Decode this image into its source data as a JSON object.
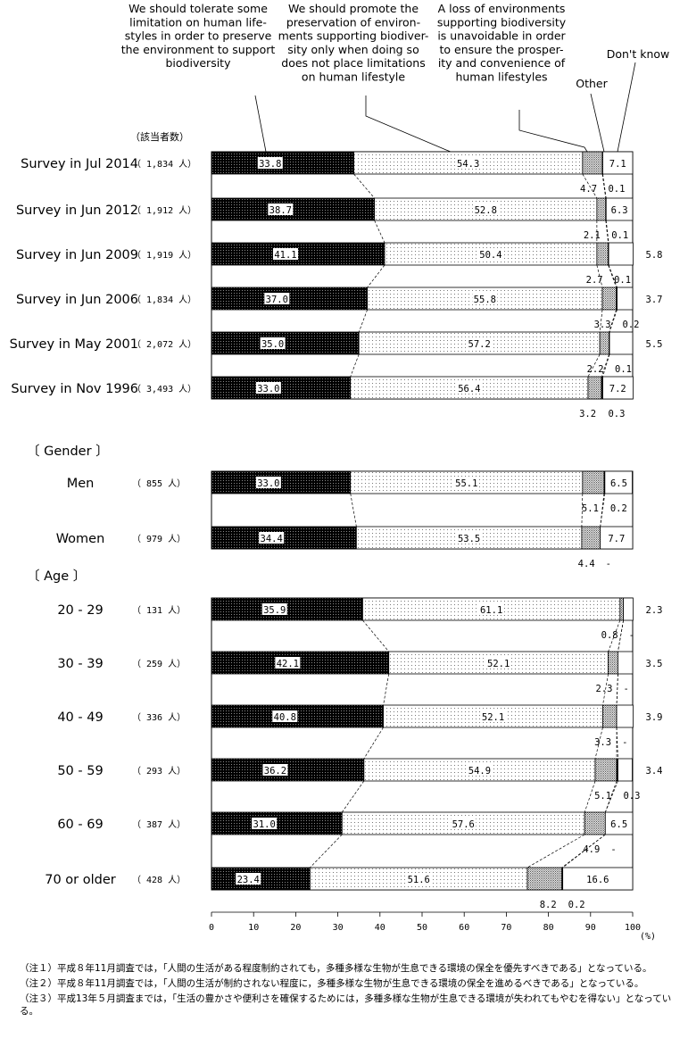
{
  "chart_data": {
    "type": "bar",
    "orientation": "horizontal-stacked-100",
    "count_header": "（該当者数）",
    "unit_suffix": "人",
    "xaxis": {
      "ticks": [
        0,
        10,
        20,
        30,
        40,
        50,
        60,
        70,
        80,
        90,
        100
      ],
      "unit": "(%)",
      "range": [
        0,
        100
      ]
    },
    "categories": [
      {
        "label": "Survey in Jul 2014",
        "n": "1,834"
      },
      {
        "label": "Survey in Jun 2012",
        "n": "1,912"
      },
      {
        "label": "Survey in Jun 2009",
        "n": "1,919"
      },
      {
        "label": "Survey in Jun 2006",
        "n": "1,834"
      },
      {
        "label": "Survey in May 2001",
        "n": "2,072"
      },
      {
        "label": "Survey in Nov 1996",
        "n": "3,493"
      },
      {
        "label": "Men",
        "n": "855"
      },
      {
        "label": "Women",
        "n": "979"
      },
      {
        "label": "20 - 29",
        "n": "131"
      },
      {
        "label": "30 - 39",
        "n": "259"
      },
      {
        "label": "40 - 49",
        "n": "336"
      },
      {
        "label": "50 - 59",
        "n": "293"
      },
      {
        "label": "60 - 69",
        "n": "387"
      },
      {
        "label": "70 or older",
        "n": "428"
      }
    ],
    "series": [
      {
        "name": "We should tolerate some limitation on human life-styles in order to preserve the environment to support biodiversity",
        "values": [
          33.8,
          38.7,
          41.1,
          37.0,
          35.0,
          33.0,
          33.0,
          34.4,
          35.9,
          42.1,
          40.8,
          36.2,
          31.0,
          23.4
        ],
        "labels": [
          "33.8",
          "38.7",
          "41.1",
          "37.0",
          "35.0",
          "33.0",
          "33.0",
          "34.4",
          "35.9",
          "42.1",
          "40.8",
          "36.2",
          "31.0",
          "23.4"
        ]
      },
      {
        "name": "We should promote the preservation of environ-ments supporting biodiver-sity only when doing so does not place limitations on human lifestyle",
        "values": [
          54.3,
          52.8,
          50.4,
          55.8,
          57.2,
          56.4,
          55.1,
          53.5,
          61.1,
          52.1,
          52.1,
          54.9,
          57.6,
          51.6
        ],
        "labels": [
          "54.3",
          "52.8",
          "50.4",
          "55.8",
          "57.2",
          "56.4",
          "55.1",
          "53.5",
          "61.1",
          "52.1",
          "52.1",
          "54.9",
          "57.6",
          "51.6"
        ]
      },
      {
        "name": "A loss of environments supporting biodiversity is unavoidable in order to ensure the prosper-ity and convenience of human lifestyles",
        "values": [
          4.7,
          2.1,
          2.7,
          3.3,
          2.2,
          3.2,
          5.1,
          4.4,
          0.8,
          2.3,
          3.3,
          5.1,
          4.9,
          8.2
        ],
        "labels": [
          "4.7",
          "2.1",
          "2.7",
          "3.3",
          "2.2",
          "3.2",
          "5.1",
          "4.4",
          "0.8",
          "2.3",
          "3.3",
          "5.1",
          "4.9",
          "8.2"
        ]
      },
      {
        "name": "Other",
        "values": [
          0.1,
          0.1,
          0.1,
          0.2,
          0.1,
          0.3,
          0.2,
          0,
          0,
          0,
          0,
          0.3,
          0,
          0.2
        ],
        "labels": [
          "0.1",
          "0.1",
          "0.1",
          "0.2",
          "0.1",
          "0.3",
          "0.2",
          "-",
          "-",
          "-",
          "-",
          "0.3",
          "-",
          "0.2"
        ]
      },
      {
        "name": "Don't know",
        "values": [
          7.1,
          6.3,
          5.8,
          3.7,
          5.5,
          7.2,
          6.5,
          7.7,
          2.3,
          3.5,
          3.9,
          3.4,
          6.5,
          16.6
        ],
        "labels": [
          "7.1",
          "6.3",
          "5.8",
          "3.7",
          "5.5",
          "7.2",
          "6.5",
          "7.7",
          "2.3",
          "3.5",
          "3.9",
          "3.4",
          "6.5",
          "16.6"
        ]
      }
    ],
    "section_headers": [
      {
        "label": "Gender",
        "before_index": 6
      },
      {
        "label": "Age",
        "before_index": 8
      }
    ],
    "notes": [
      {
        "tag": "（注１）",
        "text": "平成８年11月調査では，「人間の生活がある程度制約されても，多種多様な生物が生息できる環境の保全を優先すべきである」となっている。"
      },
      {
        "tag": "（注２）",
        "text": "平成８年11月調査では，「人間の生活が制約されない程度に，多種多様な生物が生息できる環境の保全を進めるべきである」となっている。"
      },
      {
        "tag": "（注３）",
        "text": "平成13年５月調査までは，「生活の豊かさや便利さを確保するためには，多種多様な生物が生息できる環境が失われてもやむを得ない」となっている。"
      }
    ]
  }
}
